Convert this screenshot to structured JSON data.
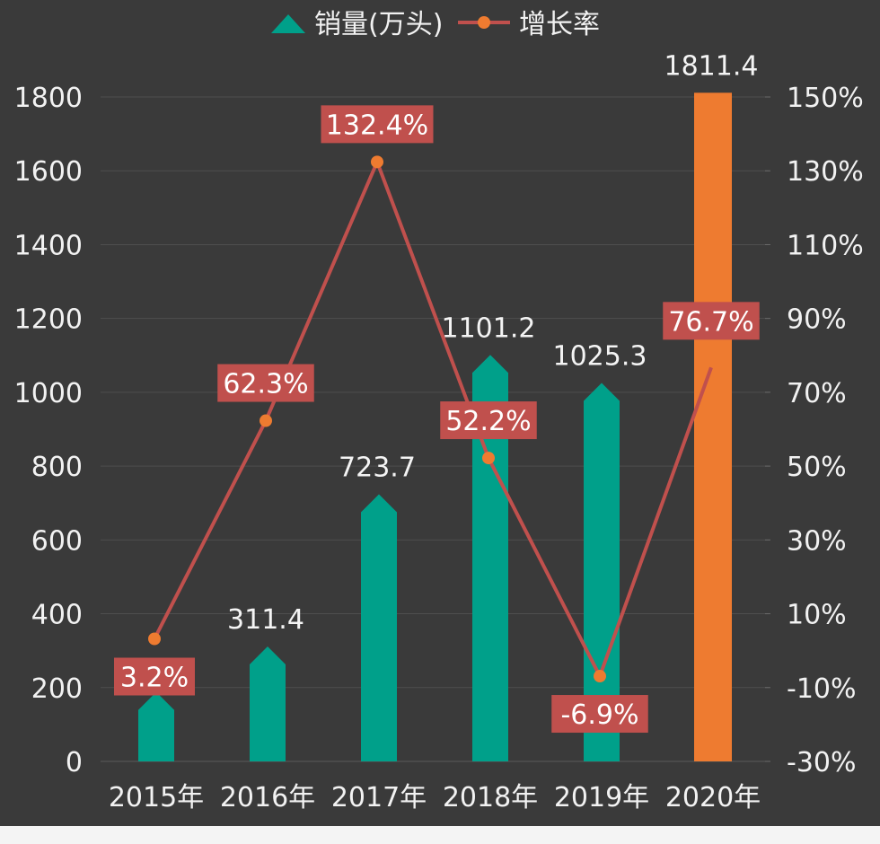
{
  "chart_data": {
    "type": "bar",
    "categories": [
      "2015年",
      "2016年",
      "2017年",
      "2018年",
      "2019年",
      "2020年"
    ],
    "series": [
      {
        "name": "销量(万头)",
        "type": "bar",
        "axis": "left",
        "values": [
          188.0,
          311.4,
          723.7,
          1101.2,
          1025.3,
          1811.4
        ],
        "labels": [
          "",
          "311.4",
          "723.7",
          "1101.2",
          "1025.3",
          "1811.4"
        ],
        "color": "#00a08a",
        "highlight_color": "#ee7b30"
      },
      {
        "name": "增长率",
        "type": "line",
        "axis": "right",
        "values": [
          3.2,
          62.3,
          132.4,
          52.2,
          -6.9,
          76.7
        ],
        "labels": [
          "3.2%",
          "62.3%",
          "132.4%",
          "52.2%",
          "-6.9%",
          "76.7%"
        ],
        "color": "#c0504d",
        "marker_color": "#ee7b30"
      }
    ],
    "y_left": {
      "min": 0,
      "max": 1800,
      "ticks": [
        "0",
        "200",
        "400",
        "600",
        "800",
        "1000",
        "1200",
        "1400",
        "1600",
        "1800"
      ]
    },
    "y_right": {
      "min": -30,
      "max": 150,
      "ticks": [
        "-30%",
        "-10%",
        "10%",
        "30%",
        "50%",
        "70%",
        "90%",
        "110%",
        "130%",
        "150%"
      ]
    },
    "grid": true,
    "legend": "top-center"
  }
}
